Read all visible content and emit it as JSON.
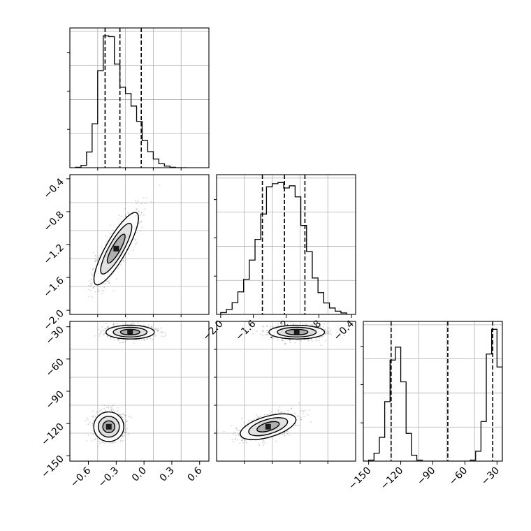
{
  "chart_data": {
    "type": "corner",
    "parameters": [
      "",
      "",
      ""
    ],
    "grid": true,
    "quantile_lines": "dashed",
    "panels": [
      {
        "type": "histogram",
        "row": 0,
        "col": 0,
        "x_range": [
          -0.8,
          0.7
        ],
        "bins": [
          -0.74,
          -0.68,
          -0.62,
          -0.56,
          -0.5,
          -0.44,
          -0.38,
          -0.32,
          -0.26,
          -0.2,
          -0.14,
          -0.08,
          -0.02,
          0.04,
          0.1,
          0.16,
          0.22,
          0.28,
          0.34,
          0.4
        ],
        "counts": [
          1,
          6,
          40,
          112,
          247,
          336,
          334,
          264,
          205,
          189,
          157,
          118,
          69,
          41,
          22,
          10,
          4,
          1,
          0,
          0
        ],
        "quantiles": [
          -0.42,
          -0.26,
          -0.03
        ],
        "xticks": [],
        "yticks": []
      },
      {
        "type": "histogram",
        "row": 1,
        "col": 1,
        "x_range": [
          -2.05,
          -0.35
        ],
        "bins": [
          -2.0,
          -1.93,
          -1.86,
          -1.79,
          -1.72,
          -1.65,
          -1.58,
          -1.51,
          -1.44,
          -1.37,
          -1.3,
          -1.23,
          -1.16,
          -1.09,
          -1.02,
          -0.95,
          -0.88,
          -0.81,
          -0.74,
          -0.67,
          -0.6,
          -0.53
        ],
        "counts": [
          5,
          14,
          33,
          63,
          98,
          152,
          210,
          281,
          357,
          366,
          369,
          354,
          360,
          329,
          249,
          176,
          102,
          61,
          32,
          18,
          9,
          4
        ],
        "quantiles": [
          -1.49,
          -1.22,
          -0.97
        ],
        "xticks": [
          "−2.0",
          "−1.6",
          "−1.2",
          "−0.8",
          "−0.4"
        ],
        "xtick_values": [
          -2.0,
          -1.6,
          -1.2,
          -0.8,
          -0.4
        ],
        "yticks": []
      },
      {
        "type": "histogram",
        "row": 2,
        "col": 2,
        "x_range": [
          -155,
          -25
        ],
        "bins": [
          -155,
          -150,
          -145,
          -140,
          -135,
          -130,
          -125,
          -120,
          -115,
          -110,
          -105,
          -100,
          -95,
          -90,
          -85,
          -80,
          -75,
          -70,
          -65,
          -60,
          -55,
          -50,
          -45,
          -40,
          -35,
          -30
        ],
        "counts": [
          0,
          1,
          8,
          24,
          60,
          102,
          115,
          80,
          28,
          6,
          1,
          0,
          0,
          0,
          0,
          0,
          0,
          0,
          0,
          0,
          1,
          10,
          40,
          108,
          133,
          95
        ],
        "quantiles": [
          -129,
          -76,
          -34
        ],
        "xticks": [
          "−150",
          "−120",
          "−90",
          "−60",
          "−30"
        ],
        "xtick_values": [
          -150,
          -120,
          -90,
          -60,
          -30
        ],
        "yticks": []
      },
      {
        "type": "2d-density",
        "row": 1,
        "col": 0,
        "x_range": [
          -0.8,
          0.7
        ],
        "y_range": [
          -2.05,
          -0.35
        ],
        "modes": [
          {
            "center": [
              -0.3,
              -1.25
            ],
            "sigma": [
              0.12,
              0.22
            ],
            "corr": 0.85
          }
        ],
        "xticks": [],
        "yticks": [
          "−2.0",
          "−1.6",
          "−1.2",
          "−0.8",
          "−0.4"
        ],
        "ytick_values": [
          -2.0,
          -1.6,
          -1.2,
          -0.8,
          -0.4
        ]
      },
      {
        "type": "2d-density",
        "row": 2,
        "col": 0,
        "x_range": [
          -0.8,
          0.7
        ],
        "y_range": [
          -155,
          -25
        ],
        "modes": [
          {
            "center": [
              -0.15,
              -35
            ],
            "sigma": [
              0.13,
              3.2
            ],
            "corr": 0.0
          },
          {
            "center": [
              -0.38,
              -123
            ],
            "sigma": [
              0.08,
              7
            ],
            "corr": 0.0
          }
        ],
        "xticks": [
          "−0.6",
          "−0.3",
          "0.0",
          "0.3",
          "0.6"
        ],
        "xtick_values": [
          -0.6,
          -0.3,
          0.0,
          0.3,
          0.6
        ],
        "yticks": [
          "−150",
          "−120",
          "−90",
          "−60",
          "−30"
        ],
        "ytick_values": [
          -150,
          -120,
          -90,
          -60,
          -30
        ]
      },
      {
        "type": "2d-density",
        "row": 2,
        "col": 1,
        "x_range": [
          -2.05,
          -0.35
        ],
        "y_range": [
          -155,
          -25
        ],
        "modes": [
          {
            "center": [
              -1.07,
              -35
            ],
            "sigma": [
              0.17,
              3.2
            ],
            "corr": 0.0
          },
          {
            "center": [
              -1.42,
              -123
            ],
            "sigma": [
              0.17,
              6
            ],
            "corr": 0.55
          }
        ],
        "xticks": [],
        "yticks": []
      }
    ]
  }
}
